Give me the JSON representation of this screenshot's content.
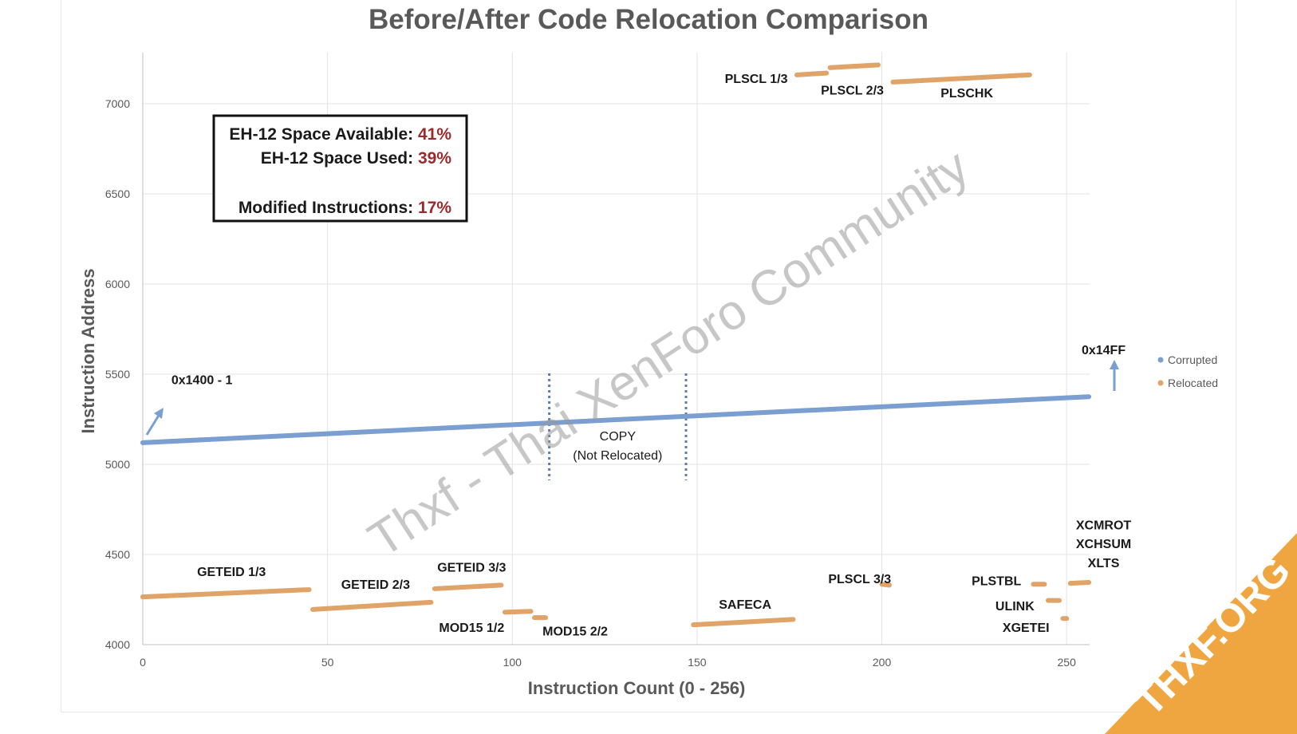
{
  "chart_data": {
    "type": "scatter",
    "title": "Before/After Code Relocation Comparison",
    "xlabel": "Instruction Count (0 - 256)",
    "ylabel": "Instruction Address",
    "xlim": [
      0,
      260
    ],
    "ylim": [
      4000,
      7300
    ],
    "x_ticks": [
      0,
      50,
      100,
      150,
      200,
      250
    ],
    "y_ticks": [
      4000,
      4500,
      5000,
      5500,
      6000,
      6500,
      7000
    ],
    "grid": true,
    "legend_position": "right",
    "series": [
      {
        "name": "Corrupted",
        "color": "#7a9fd0",
        "segments": [
          {
            "x0": 0,
            "x1": 256,
            "y0": 5120,
            "y1": 5375
          }
        ]
      },
      {
        "name": "Relocated",
        "color": "#e0a368",
        "segments": [
          {
            "x0": 0,
            "x1": 45,
            "y0": 4265,
            "y1": 4305
          },
          {
            "x0": 46,
            "x1": 78,
            "y0": 4195,
            "y1": 4235
          },
          {
            "x0": 79,
            "x1": 97,
            "y0": 4310,
            "y1": 4330
          },
          {
            "x0": 98,
            "x1": 105,
            "y0": 4180,
            "y1": 4185
          },
          {
            "x0": 106,
            "x1": 109,
            "y0": 4150,
            "y1": 4150
          },
          {
            "x0": 149,
            "x1": 176,
            "y0": 4110,
            "y1": 4140
          },
          {
            "x0": 177,
            "x1": 185,
            "y0": 7160,
            "y1": 7170
          },
          {
            "x0": 186,
            "x1": 199,
            "y0": 7200,
            "y1": 7215
          },
          {
            "x0": 200,
            "x1": 202,
            "y0": 4335,
            "y1": 4330
          },
          {
            "x0": 203,
            "x1": 240,
            "y0": 7120,
            "y1": 7160
          },
          {
            "x0": 241,
            "x1": 244,
            "y0": 4335,
            "y1": 4335
          },
          {
            "x0": 245,
            "x1": 248,
            "y0": 4245,
            "y1": 4245
          },
          {
            "x0": 249,
            "x1": 250,
            "y0": 4145,
            "y1": 4145
          },
          {
            "x0": 251,
            "x1": 256,
            "y0": 4340,
            "y1": 4345
          }
        ]
      }
    ],
    "annotations": [
      {
        "text": "GETEID 1/3",
        "x": 24,
        "y": 4380
      },
      {
        "text": "GETEID 2/3",
        "x": 63,
        "y": 4310
      },
      {
        "text": "GETEID 3/3",
        "x": 89,
        "y": 4405
      },
      {
        "text": "MOD15 1/2",
        "x": 89,
        "y": 4070
      },
      {
        "text": "MOD15 2/2",
        "x": 117,
        "y": 4050
      },
      {
        "text": "SAFECA",
        "x": 163,
        "y": 4200
      },
      {
        "text": "PLSCL 1/3",
        "x": 166,
        "y": 7115
      },
      {
        "text": "PLSCL 2/3",
        "x": 192,
        "y": 7050
      },
      {
        "text": "PLSCHK",
        "x": 223,
        "y": 7035
      },
      {
        "text": "PLSCL 3/3",
        "x": 194,
        "y": 4340
      },
      {
        "text": "PLSTBL",
        "x": 231,
        "y": 4330
      },
      {
        "text": "ULINK",
        "x": 236,
        "y": 4190
      },
      {
        "text": "XGETEI",
        "x": 239,
        "y": 4070
      },
      {
        "text": "XCMROT",
        "x": 260,
        "y": 4640
      },
      {
        "text": "XCHSUM",
        "x": 260,
        "y": 4535
      },
      {
        "text": "XLTS",
        "x": 260,
        "y": 4430
      },
      {
        "text": "0x1400 - 1",
        "x": 16,
        "y": 5445
      },
      {
        "text": "0x14FF",
        "x": 260,
        "y": 5610
      }
    ],
    "copy_region": {
      "x0": 110,
      "x1": 147,
      "label_line1": "COPY",
      "label_line2": "(Not Relocated)"
    },
    "stats": [
      {
        "label": "EH-12 Space Available: ",
        "value": "41%"
      },
      {
        "label": "EH-12 Space Used: ",
        "value": "39%"
      },
      {
        "label": "Modified Instructions: ",
        "value": "17%"
      }
    ]
  },
  "watermark": "Thxf - Thai XenForo Community",
  "ribbon": "THXF.ORG"
}
